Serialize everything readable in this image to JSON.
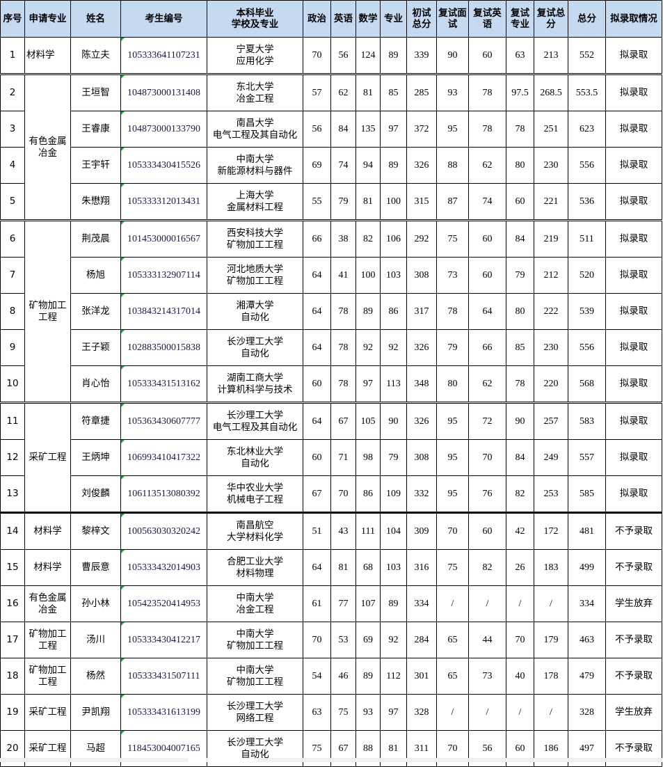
{
  "header": {
    "seq": "序号",
    "major": "申请专业",
    "name": "姓名",
    "exam_id": "考生编号",
    "undergrad": "本科毕业\n学校及专业",
    "politics": "政治",
    "english": "英语",
    "math": "数学",
    "specialty": "专业",
    "prelim_total": "初试\n总分",
    "retest_interview": "复试面\n试",
    "retest_english": "复试英\n语",
    "retest_specialty": "复试\n专业",
    "retest_total": "复试总\n分",
    "total": "总分",
    "status": "拟录取情况"
  },
  "groups": {
    "nonferrous": "有色金属\n冶金",
    "mineral": "矿物加工\n工程",
    "mining": "采矿工程"
  },
  "rows": [
    {
      "seq": "1",
      "major": "材料学",
      "name": "陈立夫",
      "id": "105333641107231",
      "school": "宁夏大学",
      "program": "应用化学",
      "politics": "70",
      "english": "56",
      "math": "124",
      "specialty": "89",
      "prelim": "339",
      "interview": "90",
      "rEnglish": "60",
      "rSpecialty": "63",
      "rTotal": "213",
      "total": "552",
      "status": "拟录取"
    },
    {
      "seq": "2",
      "major": "",
      "name": "王垣智",
      "id": "104873000131408",
      "school": "东北大学",
      "program": "冶金工程",
      "politics": "57",
      "english": "62",
      "math": "81",
      "specialty": "85",
      "prelim": "285",
      "interview": "93",
      "rEnglish": "78",
      "rSpecialty": "97.5",
      "rTotal": "268.5",
      "total": "553.5",
      "status": "拟录取"
    },
    {
      "seq": "3",
      "major": "",
      "name": "王睿康",
      "id": "104873000133790",
      "school": "南昌大学",
      "program": "电气工程及其自动化",
      "politics": "56",
      "english": "84",
      "math": "135",
      "specialty": "97",
      "prelim": "372",
      "interview": "95",
      "rEnglish": "78",
      "rSpecialty": "78",
      "rTotal": "251",
      "total": "623",
      "status": "拟录取"
    },
    {
      "seq": "4",
      "major": "",
      "name": "王宇轩",
      "id": "105333430415526",
      "school": "中南大学",
      "program": "新能源材料与器件",
      "politics": "69",
      "english": "74",
      "math": "94",
      "specialty": "89",
      "prelim": "326",
      "interview": "88",
      "rEnglish": "62",
      "rSpecialty": "80",
      "rTotal": "230",
      "total": "556",
      "status": "拟录取"
    },
    {
      "seq": "5",
      "major": "",
      "name": "朱懋翔",
      "id": "105333312013431",
      "school": "上海大学",
      "program": "金属材料工程",
      "politics": "55",
      "english": "79",
      "math": "81",
      "specialty": "100",
      "prelim": "315",
      "interview": "87",
      "rEnglish": "74",
      "rSpecialty": "60",
      "rTotal": "221",
      "total": "536",
      "status": "拟录取"
    },
    {
      "seq": "6",
      "major": "",
      "name": "荆茂晨",
      "id": "101453000016567",
      "school": "西安科技大学",
      "program": "矿物加工工程",
      "politics": "66",
      "english": "38",
      "math": "82",
      "specialty": "106",
      "prelim": "292",
      "interview": "75",
      "rEnglish": "60",
      "rSpecialty": "84",
      "rTotal": "219",
      "total": "511",
      "status": "拟录取"
    },
    {
      "seq": "7",
      "major": "",
      "name": "杨旭",
      "id": "105333132907114",
      "school": "河北地质大学",
      "program": "矿物加工工程",
      "politics": "64",
      "english": "41",
      "math": "100",
      "specialty": "103",
      "prelim": "308",
      "interview": "73",
      "rEnglish": "60",
      "rSpecialty": "79",
      "rTotal": "212",
      "total": "520",
      "status": "拟录取"
    },
    {
      "seq": "8",
      "major": "",
      "name": "张洋龙",
      "id": "103843214317014",
      "school": "湘潭大学",
      "program": "自动化",
      "politics": "64",
      "english": "78",
      "math": "89",
      "specialty": "86",
      "prelim": "317",
      "interview": "78",
      "rEnglish": "64",
      "rSpecialty": "80",
      "rTotal": "222",
      "total": "539",
      "status": "拟录取"
    },
    {
      "seq": "9",
      "major": "",
      "name": "王子颖",
      "id": "102883500015838",
      "school": "长沙理工大学",
      "program": "自动化",
      "politics": "64",
      "english": "78",
      "math": "92",
      "specialty": "92",
      "prelim": "326",
      "interview": "79",
      "rEnglish": "66",
      "rSpecialty": "85",
      "rTotal": "230",
      "total": "556",
      "status": "拟录取"
    },
    {
      "seq": "10",
      "major": "",
      "name": "肖心怡",
      "id": "105333431513162",
      "school": "湖南工商大学",
      "program": "计算机科学与技术",
      "politics": "60",
      "english": "78",
      "math": "97",
      "specialty": "113",
      "prelim": "348",
      "interview": "80",
      "rEnglish": "62",
      "rSpecialty": "78",
      "rTotal": "220",
      "total": "568",
      "status": "拟录取"
    },
    {
      "seq": "11",
      "major": "",
      "name": "符章捷",
      "id": "105363430607777",
      "school": "长沙理工大学",
      "program": "电气工程及其自动化",
      "politics": "64",
      "english": "67",
      "math": "105",
      "specialty": "90",
      "prelim": "326",
      "interview": "95",
      "rEnglish": "72",
      "rSpecialty": "90",
      "rTotal": "257",
      "total": "583",
      "status": "拟录取"
    },
    {
      "seq": "12",
      "major": "",
      "name": "王炳坤",
      "id": "106993410417322",
      "school": "东北林业大学",
      "program": "自动化",
      "politics": "60",
      "english": "71",
      "math": "98",
      "specialty": "79",
      "prelim": "308",
      "interview": "95",
      "rEnglish": "70",
      "rSpecialty": "84",
      "rTotal": "249",
      "total": "557",
      "status": "拟录取"
    },
    {
      "seq": "13",
      "major": "",
      "name": "刘俊麟",
      "id": "106113513080392",
      "school": "华中农业大学",
      "program": "机械电子工程",
      "politics": "67",
      "english": "70",
      "math": "86",
      "specialty": "109",
      "prelim": "332",
      "interview": "95",
      "rEnglish": "76",
      "rSpecialty": "82",
      "rTotal": "253",
      "total": "585",
      "status": "拟录取"
    },
    {
      "seq": "14",
      "major": "材料学",
      "name": "黎梓文",
      "id": "100563030320242",
      "school": "南昌航空",
      "program": "大学材料化学",
      "politics": "51",
      "english": "43",
      "math": "111",
      "specialty": "104",
      "prelim": "309",
      "interview": "70",
      "rEnglish": "60",
      "rSpecialty": "42",
      "rTotal": "172",
      "total": "481",
      "status": "不予录取"
    },
    {
      "seq": "15",
      "major": "材料学",
      "name": "曹辰意",
      "id": "105333432014903",
      "school": "合肥工业大学",
      "program": "材料物理",
      "politics": "64",
      "english": "81",
      "math": "68",
      "specialty": "103",
      "prelim": "316",
      "interview": "75",
      "rEnglish": "82",
      "rSpecialty": "26",
      "rTotal": "183",
      "total": "499",
      "status": "不予录取"
    },
    {
      "seq": "16",
      "major": "有色金属\n冶金",
      "name": "孙小林",
      "id": "105423520414953",
      "school": "中南大学",
      "program": "冶金工程",
      "politics": "61",
      "english": "77",
      "math": "107",
      "specialty": "89",
      "prelim": "334",
      "interview": "/",
      "rEnglish": "/",
      "rSpecialty": "/",
      "rTotal": "/",
      "total": "334",
      "status": "学生放弃"
    },
    {
      "seq": "17",
      "major": "矿物加工\n工程",
      "name": "汤川",
      "id": "105333430412217",
      "school": "中南大学",
      "program": "矿物加工工程",
      "politics": "70",
      "english": "53",
      "math": "69",
      "specialty": "92",
      "prelim": "284",
      "interview": "65",
      "rEnglish": "44",
      "rSpecialty": "70",
      "rTotal": "179",
      "total": "463",
      "status": "不予录取"
    },
    {
      "seq": "18",
      "major": "矿物加工\n工程",
      "name": "杨然",
      "id": "105333431507111",
      "school": "中南大学",
      "program": "矿物加工工程",
      "politics": "54",
      "english": "46",
      "math": "89",
      "specialty": "112",
      "prelim": "301",
      "interview": "65",
      "rEnglish": "73",
      "rSpecialty": "40",
      "rTotal": "178",
      "total": "479",
      "status": "不予录取"
    },
    {
      "seq": "19",
      "major": "采矿工程",
      "name": "尹凯翔",
      "id": "105333431613199",
      "school": "长沙理工大学",
      "program": "网络工程",
      "politics": "63",
      "english": "75",
      "math": "93",
      "specialty": "97",
      "prelim": "328",
      "interview": "/",
      "rEnglish": "/",
      "rSpecialty": "/",
      "rTotal": "/",
      "total": "328",
      "status": "学生放弃"
    },
    {
      "seq": "20",
      "major": "采矿工程",
      "name": "马超",
      "id": "118453004007165",
      "school": "长沙理工大学",
      "program": "自动化",
      "politics": "75",
      "english": "67",
      "math": "88",
      "specialty": "81",
      "prelim": "311",
      "interview": "70",
      "rEnglish": "56",
      "rSpecialty": "60",
      "rTotal": "186",
      "total": "497",
      "status": "不予录取"
    }
  ],
  "colors": {
    "header_bg": "#c5d9f1",
    "border": "#000000",
    "comment_marker": "#1f9e3a"
  }
}
